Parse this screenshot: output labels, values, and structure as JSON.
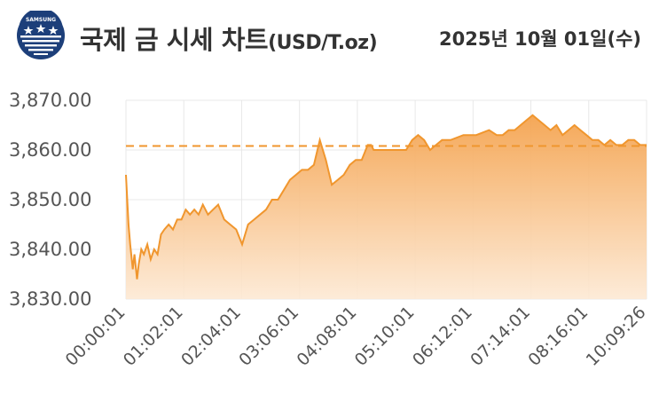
{
  "header": {
    "title": "국제 금 시세 차트",
    "unit": "(USD/T.oz)",
    "date": "2025년 10월 01일(수)"
  },
  "chart_data": {
    "type": "area",
    "title": "국제 금 시세 차트",
    "unit": "USD/T.oz",
    "ylim": [
      3830,
      3870
    ],
    "yticks": [
      "3,830.00",
      "3,840.00",
      "3,850.00",
      "3,860.00",
      "3,870.00"
    ],
    "ytick_values": [
      3830,
      3840,
      3850,
      3860,
      3870
    ],
    "xticks": [
      "00:00:01",
      "01:02:01",
      "02:04:01",
      "03:06:01",
      "04:08:01",
      "05:10:01",
      "06:12:01",
      "07:14:01",
      "08:16:01",
      "10:09:26"
    ],
    "reference_line": 3860.8,
    "grid": true,
    "colors": {
      "line": "#f0962e",
      "fill_top": "#f4a34f",
      "fill_bottom": "#fde9d4",
      "grid": "#e8e8e8"
    },
    "series": [
      {
        "x": [
          "00:00:01",
          "00:03",
          "00:05",
          "00:08",
          "00:10",
          "00:13",
          "00:15",
          "00:18",
          "00:21",
          "00:25",
          "00:29",
          "00:33",
          "00:37",
          "00:41",
          "00:45",
          "00:50",
          "00:55",
          "01:00",
          "01:05",
          "01:10",
          "01:15",
          "01:20",
          "01:25",
          "01:30",
          "01:36",
          "01:42",
          "01:48",
          "01:55",
          "02:02",
          "02:09",
          "02:16",
          "02:23",
          "02:30",
          "02:37",
          "02:44",
          "02:51",
          "02:58",
          "03:05",
          "03:12",
          "03:19",
          "03:26",
          "03:33",
          "03:40",
          "03:47",
          "03:54",
          "04:01",
          "04:08",
          "04:15",
          "04:22",
          "04:29",
          "04:36",
          "04:43",
          "04:47",
          "04:50",
          "04:53",
          "04:57",
          "05:02",
          "05:08",
          "05:14",
          "05:21",
          "05:28",
          "05:35",
          "05:42",
          "05:49",
          "05:56",
          "06:03",
          "06:10",
          "06:20",
          "06:35",
          "06:50",
          "07:05",
          "07:14",
          "07:21",
          "07:28",
          "07:35",
          "07:42",
          "07:49",
          "07:56",
          "08:03",
          "08:10",
          "08:17",
          "08:24",
          "08:31",
          "08:38",
          "08:45",
          "08:52",
          "08:59",
          "09:06",
          "09:13",
          "09:20",
          "09:27",
          "09:34",
          "09:41",
          "09:48",
          "09:55",
          "10:02",
          "10:09:26"
        ],
        "y": [
          3855,
          3845,
          3841,
          3836,
          3839,
          3834,
          3837,
          3840,
          3839,
          3841,
          3838,
          3840,
          3839,
          3843,
          3844,
          3845,
          3844,
          3846,
          3846,
          3848,
          3847,
          3848,
          3847,
          3849,
          3847,
          3848,
          3849,
          3846,
          3845,
          3844,
          3841,
          3845,
          3846,
          3847,
          3848,
          3850,
          3850,
          3852,
          3854,
          3855,
          3856,
          3856,
          3857,
          3862,
          3858,
          3853,
          3854,
          3855,
          3857,
          3858,
          3858,
          3861,
          3861,
          3860,
          3860,
          3860,
          3860,
          3860,
          3860,
          3860,
          3860,
          3862,
          3863,
          3862,
          3860,
          3861,
          3862,
          3862,
          3863,
          3863,
          3864,
          3863,
          3863,
          3864,
          3864,
          3865,
          3866,
          3867,
          3866,
          3865,
          3864,
          3865,
          3863,
          3864,
          3865,
          3864,
          3863,
          3862,
          3862,
          3861,
          3862,
          3861,
          3861,
          3862,
          3862,
          3861,
          3861
        ]
      }
    ]
  }
}
